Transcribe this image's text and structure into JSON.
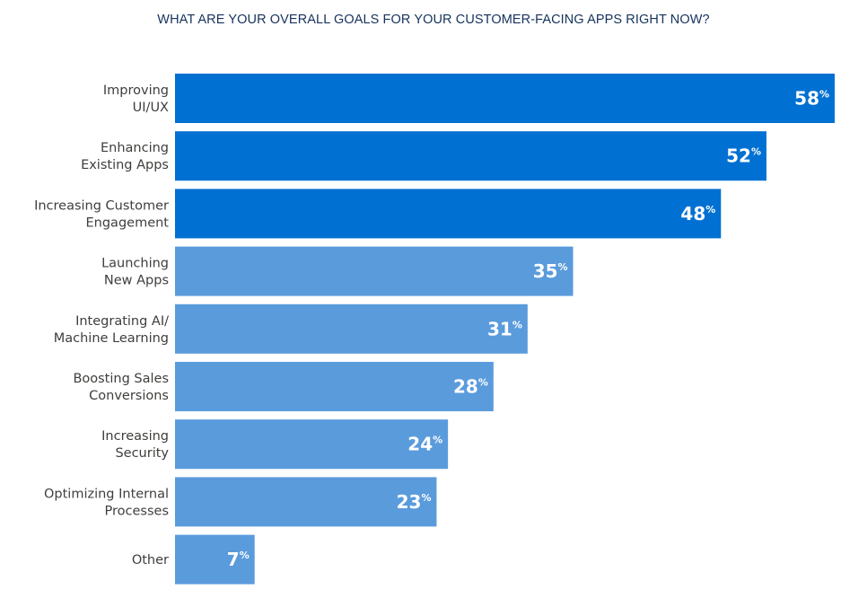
{
  "chart_data": {
    "type": "bar",
    "orientation": "horizontal",
    "title": "WHAT ARE YOUR OVERALL GOALS FOR YOUR CUSTOMER-FACING APPS RIGHT NOW?",
    "categories": [
      [
        "Improving",
        "UI/UX"
      ],
      [
        "Enhancing",
        "Existing Apps"
      ],
      [
        "Increasing Customer",
        "Engagement"
      ],
      [
        "Launching",
        "New Apps"
      ],
      [
        "Integrating AI/",
        "Machine Learning"
      ],
      [
        "Boosting Sales",
        "Conversions"
      ],
      [
        "Increasing",
        "Security"
      ],
      [
        "Optimizing Internal",
        "Processes"
      ],
      [
        "Other"
      ]
    ],
    "values": [
      58,
      52,
      48,
      35,
      31,
      28,
      24,
      23,
      7
    ],
    "unit": "%",
    "xlim": [
      0,
      58
    ],
    "grid": false,
    "colors": {
      "top3": "#0070d2",
      "rest": "#5a9bdc"
    }
  }
}
